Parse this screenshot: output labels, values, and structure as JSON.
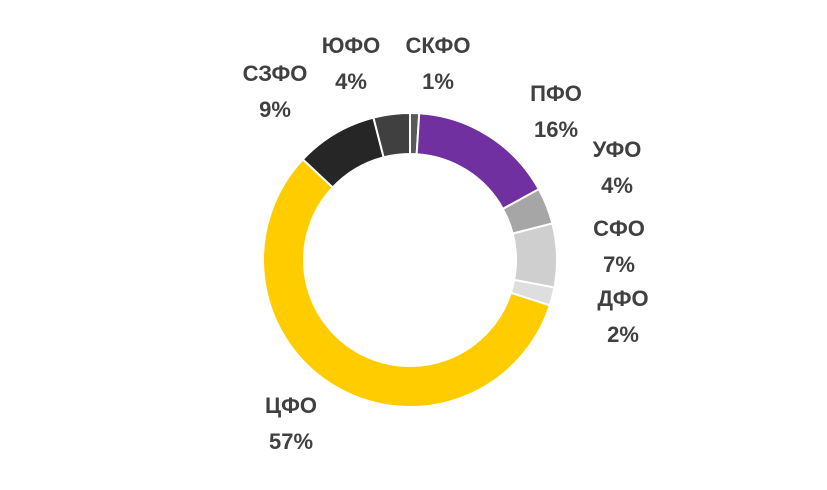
{
  "chart_data": {
    "type": "donut",
    "categories": [
      "СКФО",
      "ПФО",
      "УФО",
      "СФО",
      "ДФО",
      "ЦФО",
      "СЗФО",
      "ЮФО"
    ],
    "values": [
      1,
      16,
      4,
      7,
      2,
      57,
      9,
      4
    ],
    "value_labels": [
      "1%",
      "16%",
      "4%",
      "7%",
      "2%",
      "57%",
      "9%",
      "4%"
    ],
    "colors": [
      "#595959",
      "#7030a0",
      "#a6a6a6",
      "#cfcfcf",
      "#dedede",
      "#ffcc00",
      "#262626",
      "#404040"
    ]
  }
}
